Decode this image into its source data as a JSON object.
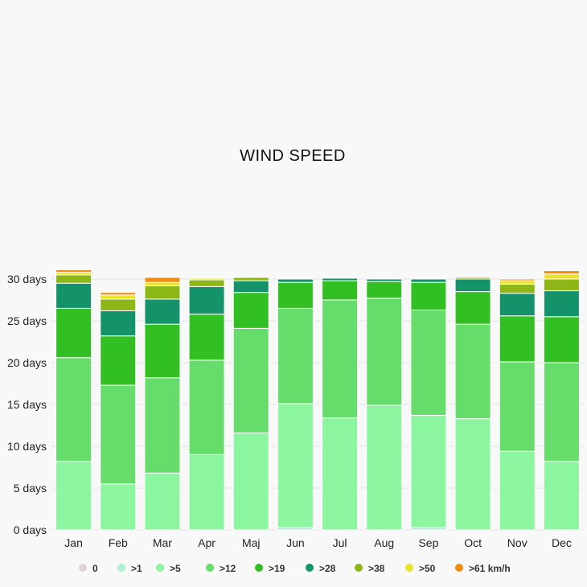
{
  "chart_data": {
    "type": "bar",
    "stacked": true,
    "title": "WIND SPEED",
    "categories": [
      "Jan",
      "Feb",
      "Mar",
      "Apr",
      "Maj",
      "Jun",
      "Jul",
      "Aug",
      "Sep",
      "Oct",
      "Nov",
      "Dec"
    ],
    "y_tick_labels": [
      "0 days",
      "5 days",
      "10 days",
      "15 days",
      "20 days",
      "25 days",
      "30 days"
    ],
    "y_ticks": [
      0,
      5,
      10,
      15,
      20,
      25,
      30
    ],
    "ylim": [
      0,
      30
    ],
    "grid": true,
    "legend_position": "bottom",
    "series": [
      {
        "name": "0",
        "color": "#dcd3d8",
        "values": [
          0,
          0,
          0,
          0,
          0,
          0,
          0,
          0,
          0,
          0,
          0,
          0
        ]
      },
      {
        "name": ">1",
        "color": "#a9f2d0",
        "values": [
          0,
          0,
          0,
          0,
          0,
          0.3,
          0,
          0,
          0.3,
          0,
          0,
          0
        ]
      },
      {
        "name": ">5",
        "color": "#8cf59f",
        "values": [
          8.2,
          5.5,
          6.8,
          9.0,
          11.6,
          14.8,
          13.4,
          14.9,
          13.4,
          13.3,
          9.4,
          8.2
        ]
      },
      {
        "name": ">12",
        "color": "#66dd6a",
        "values": [
          12.4,
          11.8,
          11.4,
          11.3,
          12.5,
          11.4,
          14.1,
          12.8,
          12.6,
          11.3,
          10.7,
          11.8
        ]
      },
      {
        "name": ">19",
        "color": "#32bf23",
        "values": [
          5.9,
          5.9,
          6.4,
          5.5,
          4.3,
          3.1,
          2.3,
          2.0,
          3.3,
          3.9,
          5.5,
          5.5
        ]
      },
      {
        "name": ">28",
        "color": "#14936a",
        "values": [
          3.0,
          3.0,
          3.0,
          3.3,
          1.4,
          0.4,
          0.3,
          0.3,
          0.4,
          1.5,
          2.7,
          3.1
        ]
      },
      {
        "name": ">38",
        "color": "#8cb716",
        "values": [
          1.0,
          1.4,
          1.6,
          0.8,
          0.4,
          0.1,
          0,
          0,
          0.1,
          0.2,
          1.1,
          1.4
        ]
      },
      {
        "name": ">50",
        "color": "#e8e42b",
        "values": [
          0.3,
          0.5,
          0.4,
          0.2,
          0.1,
          0,
          0,
          0,
          0,
          0,
          0.4,
          0.6
        ]
      },
      {
        "name": ">61 km/h",
        "color": "#f08c10",
        "values": [
          0.3,
          0.3,
          0.6,
          0.1,
          0,
          0,
          0,
          0,
          0,
          0,
          0.2,
          0.4
        ]
      }
    ]
  }
}
